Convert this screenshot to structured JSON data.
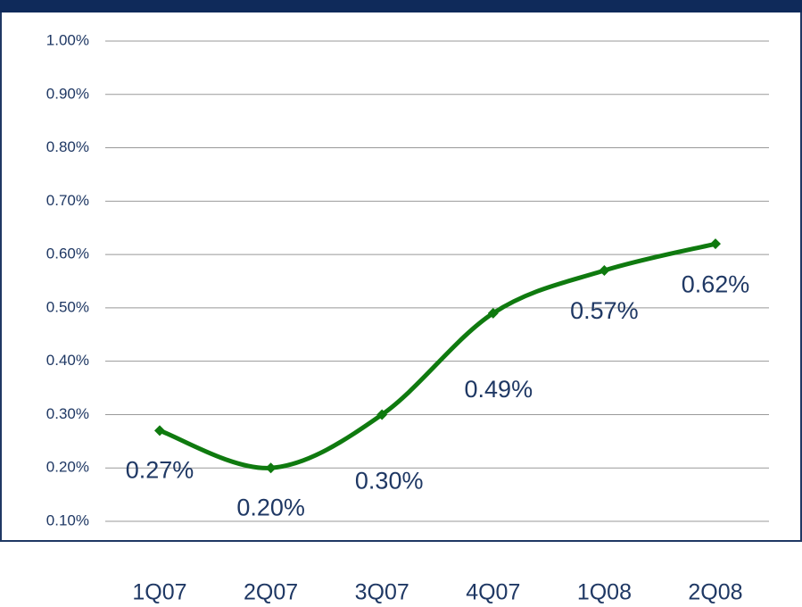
{
  "chart_data": {
    "type": "line",
    "categories": [
      "1Q07",
      "2Q07",
      "3Q07",
      "4Q07",
      "1Q08",
      "2Q08"
    ],
    "series": [
      {
        "color": "#0f7a0f",
        "values": [
          0.27,
          0.2,
          0.3,
          0.49,
          0.57,
          0.62
        ],
        "value_labels": [
          "0.27%",
          "0.20%",
          "0.30%",
          "0.49%",
          "0.57%",
          "0.62%"
        ]
      }
    ],
    "ylim": [
      0.1,
      1.0
    ],
    "yticks": [
      {
        "value": 0.1,
        "label": "0.10%"
      },
      {
        "value": 0.2,
        "label": "0.20%"
      },
      {
        "value": 0.3,
        "label": "0.30%"
      },
      {
        "value": 0.4,
        "label": "0.40%"
      },
      {
        "value": 0.5,
        "label": "0.50%"
      },
      {
        "value": 0.6,
        "label": "0.60%"
      },
      {
        "value": 0.7,
        "label": "0.70%"
      },
      {
        "value": 0.8,
        "label": "0.80%"
      },
      {
        "value": 0.9,
        "label": "0.90%"
      },
      {
        "value": 1.0,
        "label": "1.00%"
      }
    ],
    "grid": true
  }
}
